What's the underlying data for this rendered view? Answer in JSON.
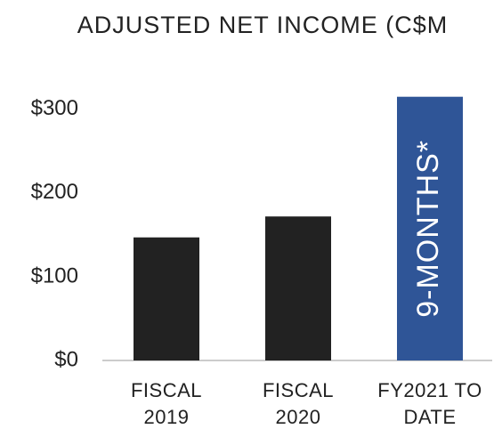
{
  "chart_data": {
    "type": "bar",
    "title": "ADJUSTED NET INCOME (C$M",
    "categories": [
      [
        "FISCAL",
        "2019"
      ],
      [
        "FISCAL",
        "2020"
      ],
      [
        "FY2021 TO",
        "DATE"
      ]
    ],
    "values": [
      147,
      172,
      315
    ],
    "colors": [
      "#222222",
      "#222222",
      "#2f5597"
    ],
    "annotation": "9-MONTHS*",
    "ylim": [
      0,
      320
    ],
    "yticks": [
      {
        "value": 0,
        "label": "$0"
      },
      {
        "value": 100,
        "label": "$100"
      },
      {
        "value": 200,
        "label": "$200"
      },
      {
        "value": 300,
        "label": "$300"
      }
    ],
    "grid": false
  }
}
